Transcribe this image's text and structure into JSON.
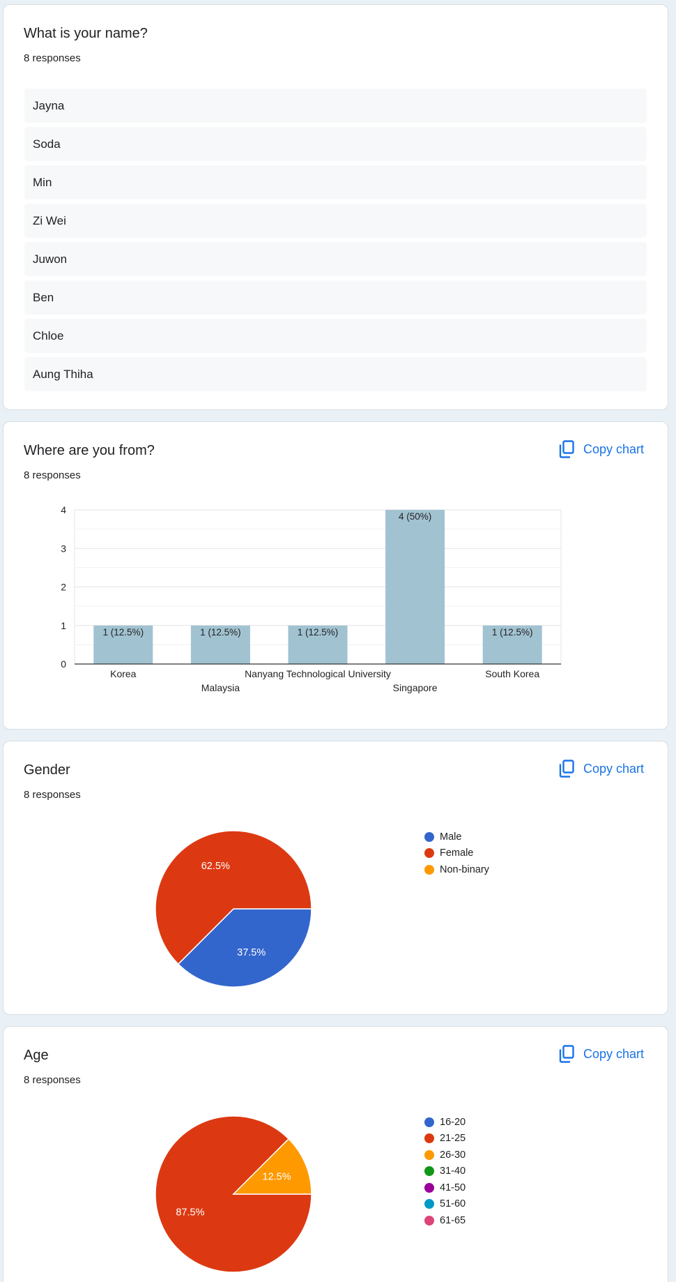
{
  "name_question": {
    "title": "What is your name?",
    "responses": "8 responses",
    "answers": [
      "Jayna",
      "Soda",
      "Min",
      "Zi Wei",
      "Juwon",
      "Ben",
      "Chloe",
      "Aung Thiha"
    ]
  },
  "country_question": {
    "title": "Where are you from?",
    "responses": "8 responses",
    "copy_label": "Copy chart"
  },
  "gender_question": {
    "title": "Gender",
    "responses": "8 responses",
    "copy_label": "Copy chart"
  },
  "age_question": {
    "title": "Age",
    "responses": "8 responses",
    "copy_label": "Copy chart"
  },
  "icons": {
    "copy": "copy-icon"
  },
  "chart_data": [
    {
      "type": "bar",
      "categories": [
        "Korea",
        "Malaysia",
        "Nanyang Technological University",
        "Singapore",
        "South Korea"
      ],
      "values": [
        1,
        1,
        1,
        4,
        1
      ],
      "data_labels": [
        "1 (12.5%)",
        "1 (12.5%)",
        "1 (12.5%)",
        "4 (50%)",
        "1 (12.5%)"
      ],
      "ylim": [
        0,
        4
      ],
      "yticks": [
        0,
        1,
        2,
        3,
        4
      ],
      "grid": true,
      "bar_color": "#a1c2d1"
    },
    {
      "type": "pie",
      "labels": [
        "Male",
        "Female",
        "Non-binary"
      ],
      "values": [
        37.5,
        62.5,
        0
      ],
      "slice_labels": [
        "37.5%",
        "62.5%",
        ""
      ],
      "colors": [
        "#3366cc",
        "#dc3912",
        "#ff9900"
      ],
      "legend": "right"
    },
    {
      "type": "pie",
      "labels": [
        "16-20",
        "21-25",
        "26-30",
        "31-40",
        "41-50",
        "51-60",
        "61-65"
      ],
      "values": [
        0,
        87.5,
        12.5,
        0,
        0,
        0,
        0
      ],
      "slice_labels": [
        "",
        "87.5%",
        "12.5%",
        "",
        "",
        "",
        ""
      ],
      "colors": [
        "#3366cc",
        "#dc3912",
        "#ff9900",
        "#109618",
        "#990099",
        "#0099c6",
        "#dd4477"
      ],
      "legend": "right"
    }
  ]
}
